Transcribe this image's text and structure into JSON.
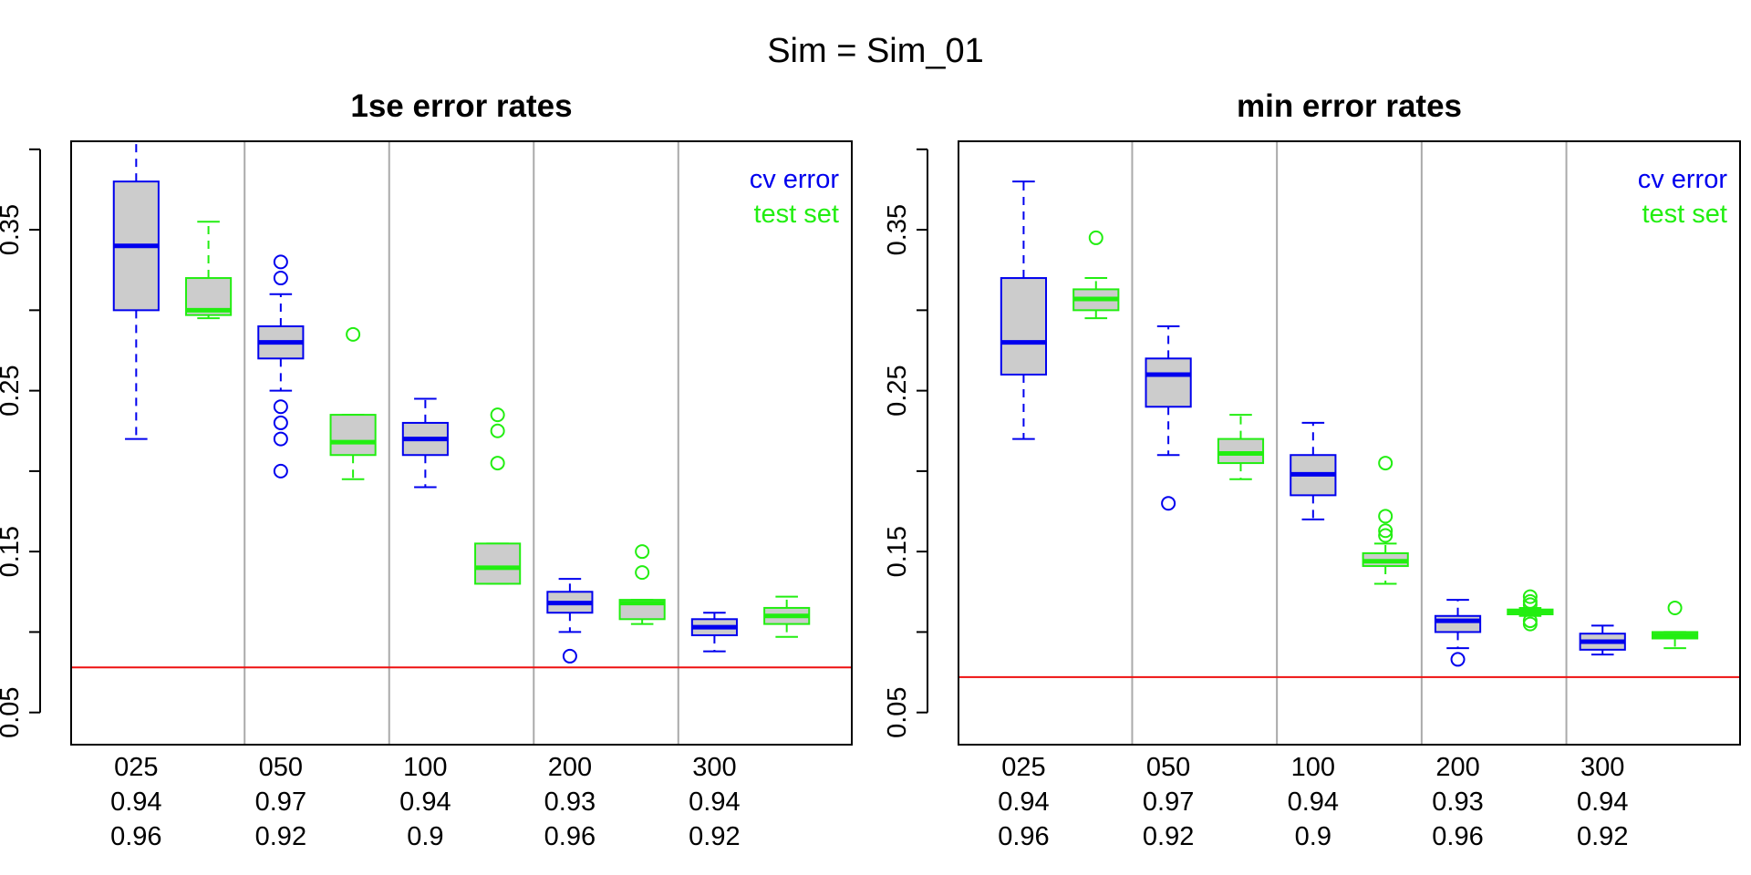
{
  "page_title": "Sim = Sim_01",
  "colors": {
    "cv_error": "#0000ee",
    "test_set": "#22ee11",
    "box_fill": "#cccccc",
    "reference_line": "#ee1111",
    "separator": "#aaaaaa"
  },
  "chart_data": [
    {
      "type": "boxplot",
      "title": "1se error rates",
      "ylim": [
        0.03,
        0.405
      ],
      "yticks": [
        "0.05",
        "0.15",
        "0.25",
        "0.35"
      ],
      "grid": false,
      "legend_position": "top-right",
      "legend": [
        {
          "label": "cv error",
          "color": "#0000ee"
        },
        {
          "label": "test set",
          "color": "#22ee11"
        }
      ],
      "groups": [
        {
          "label": "025",
          "row2": "0.94",
          "row3": "0.96"
        },
        {
          "label": "050",
          "row2": "0.97",
          "row3": "0.92"
        },
        {
          "label": "100",
          "row2": "0.94",
          "row3": "0.9"
        },
        {
          "label": "200",
          "row2": "0.93",
          "row3": "0.96"
        },
        {
          "label": "300",
          "row2": "0.94",
          "row3": "0.92"
        }
      ],
      "series": [
        {
          "name": "cv error",
          "boxes": [
            {
              "whisker_low": 0.22,
              "q1": 0.3,
              "median": 0.34,
              "q3": 0.38,
              "whisker_high": 0.41,
              "outliers": []
            },
            {
              "whisker_low": 0.25,
              "q1": 0.27,
              "median": 0.28,
              "q3": 0.29,
              "whisker_high": 0.31,
              "outliers": [
                0.33,
                0.32,
                0.24,
                0.23,
                0.22,
                0.2
              ]
            },
            {
              "whisker_low": 0.19,
              "q1": 0.21,
              "median": 0.22,
              "q3": 0.23,
              "whisker_high": 0.245,
              "outliers": []
            },
            {
              "whisker_low": 0.1,
              "q1": 0.112,
              "median": 0.118,
              "q3": 0.125,
              "whisker_high": 0.133,
              "outliers": [
                0.085
              ]
            },
            {
              "whisker_low": 0.088,
              "q1": 0.098,
              "median": 0.103,
              "q3": 0.108,
              "whisker_high": 0.112,
              "outliers": []
            }
          ]
        },
        {
          "name": "test set",
          "boxes": [
            {
              "whisker_low": 0.295,
              "q1": 0.297,
              "median": 0.3,
              "q3": 0.32,
              "whisker_high": 0.355,
              "outliers": []
            },
            {
              "whisker_low": 0.195,
              "q1": 0.21,
              "median": 0.218,
              "q3": 0.235,
              "whisker_high": 0.235,
              "outliers": [
                0.285
              ]
            },
            {
              "whisker_low": 0.13,
              "q1": 0.13,
              "median": 0.14,
              "q3": 0.155,
              "whisker_high": 0.155,
              "outliers": [
                0.235,
                0.225,
                0.205
              ]
            },
            {
              "whisker_low": 0.105,
              "q1": 0.108,
              "median": 0.118,
              "q3": 0.12,
              "whisker_high": 0.12,
              "outliers": [
                0.15,
                0.137
              ]
            },
            {
              "whisker_low": 0.097,
              "q1": 0.105,
              "median": 0.11,
              "q3": 0.115,
              "whisker_high": 0.122,
              "outliers": []
            }
          ]
        }
      ],
      "reference_line": 0.078
    },
    {
      "type": "boxplot",
      "title": "min error rates",
      "ylim": [
        0.03,
        0.405
      ],
      "yticks": [
        "0.05",
        "0.15",
        "0.25",
        "0.35"
      ],
      "grid": false,
      "legend_position": "top-right",
      "legend": [
        {
          "label": "cv error",
          "color": "#0000ee"
        },
        {
          "label": "test set",
          "color": "#22ee11"
        }
      ],
      "groups": [
        {
          "label": "025",
          "row2": "0.94",
          "row3": "0.96"
        },
        {
          "label": "050",
          "row2": "0.97",
          "row3": "0.92"
        },
        {
          "label": "100",
          "row2": "0.94",
          "row3": "0.9"
        },
        {
          "label": "200",
          "row2": "0.93",
          "row3": "0.96"
        },
        {
          "label": "300",
          "row2": "0.94",
          "row3": "0.92"
        }
      ],
      "series": [
        {
          "name": "cv error",
          "boxes": [
            {
              "whisker_low": 0.22,
              "q1": 0.26,
              "median": 0.28,
              "q3": 0.32,
              "whisker_high": 0.38,
              "outliers": []
            },
            {
              "whisker_low": 0.21,
              "q1": 0.24,
              "median": 0.26,
              "q3": 0.27,
              "whisker_high": 0.29,
              "outliers": [
                0.18
              ]
            },
            {
              "whisker_low": 0.17,
              "q1": 0.185,
              "median": 0.198,
              "q3": 0.21,
              "whisker_high": 0.23,
              "outliers": []
            },
            {
              "whisker_low": 0.09,
              "q1": 0.1,
              "median": 0.107,
              "q3": 0.11,
              "whisker_high": 0.12,
              "outliers": [
                0.083
              ]
            },
            {
              "whisker_low": 0.086,
              "q1": 0.089,
              "median": 0.094,
              "q3": 0.099,
              "whisker_high": 0.104,
              "outliers": []
            }
          ]
        },
        {
          "name": "test set",
          "boxes": [
            {
              "whisker_low": 0.295,
              "q1": 0.3,
              "median": 0.307,
              "q3": 0.313,
              "whisker_high": 0.32,
              "outliers": [
                0.345
              ]
            },
            {
              "whisker_low": 0.195,
              "q1": 0.205,
              "median": 0.211,
              "q3": 0.22,
              "whisker_high": 0.235,
              "outliers": []
            },
            {
              "whisker_low": 0.13,
              "q1": 0.141,
              "median": 0.144,
              "q3": 0.149,
              "whisker_high": 0.155,
              "outliers": [
                0.205,
                0.172,
                0.163,
                0.16
              ]
            },
            {
              "whisker_low": 0.11,
              "q1": 0.111,
              "median": 0.113,
              "q3": 0.114,
              "whisker_high": 0.115,
              "outliers": [
                0.122,
                0.119,
                0.117,
                0.107,
                0.105
              ]
            },
            {
              "whisker_low": 0.09,
              "q1": 0.096,
              "median": 0.098,
              "q3": 0.1,
              "whisker_high": 0.1,
              "outliers": [
                0.115
              ]
            }
          ]
        }
      ],
      "reference_line": 0.072
    }
  ]
}
